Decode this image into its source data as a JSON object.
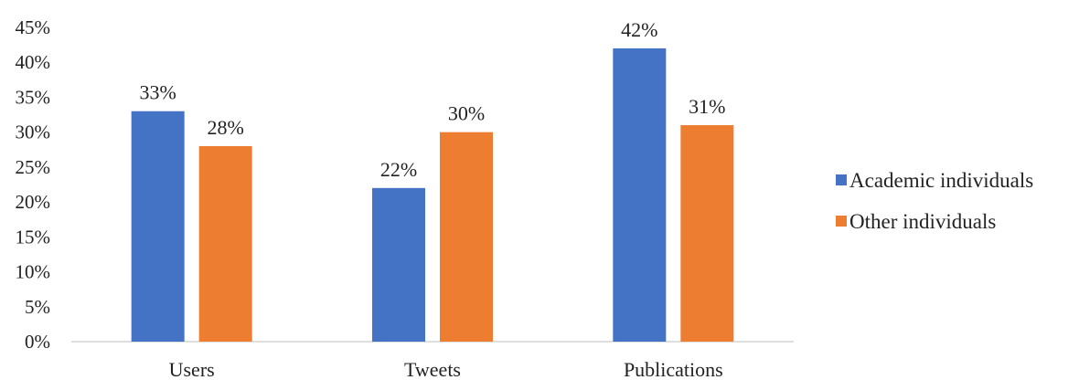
{
  "chart_data": {
    "type": "bar",
    "categories": [
      "Users",
      "Tweets",
      "Publications"
    ],
    "series": [
      {
        "name": "Academic individuals",
        "values": [
          33,
          22,
          42
        ],
        "labels": [
          "33%",
          "22%",
          "42%"
        ],
        "color": "#4472C4"
      },
      {
        "name": "Other individuals",
        "values": [
          28,
          30,
          31
        ],
        "labels": [
          "28%",
          "30%",
          "31%"
        ],
        "color": "#ED7D31"
      }
    ],
    "y_ticks": [
      "0%",
      "5%",
      "10%",
      "15%",
      "20%",
      "25%",
      "30%",
      "35%",
      "40%",
      "45%"
    ],
    "ylim": [
      0,
      45
    ],
    "grid": false,
    "legend_position": "right",
    "axis_color": "#BFBFBF"
  }
}
